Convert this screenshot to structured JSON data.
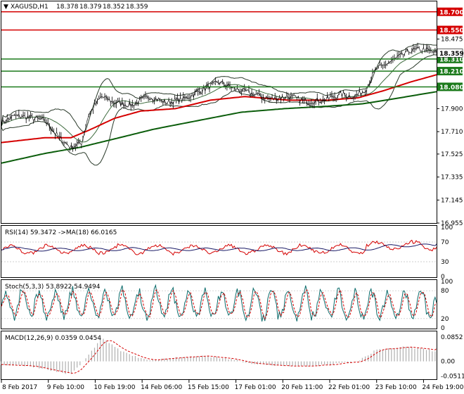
{
  "chart_data": {
    "type": "line",
    "symbol": "XAGUSD,H1",
    "ohlc": {
      "open": "18.378",
      "high": "18.379",
      "low": "18.352",
      "close": "18.359"
    },
    "current_price": 18.359,
    "current_price_label": "18.359",
    "price_axis": {
      "ylim": [
        16.955,
        18.78
      ],
      "ticks": [
        "18.700",
        "18.475",
        "18.280",
        "18.085",
        "17.900",
        "17.710",
        "17.525",
        "17.335",
        "17.145",
        "16.955"
      ]
    },
    "levels": [
      {
        "value": 18.7,
        "label": "18.700",
        "color": "#d50000"
      },
      {
        "value": 18.55,
        "label": "18.550",
        "color": "#d50000"
      },
      {
        "value": 18.31,
        "label": "18.310",
        "color": "#1b7a1b"
      },
      {
        "value": 18.21,
        "label": "18.210",
        "color": "#1b7a1b"
      },
      {
        "value": 18.08,
        "label": "18.080",
        "color": "#1b7a1b"
      }
    ],
    "x_labels": [
      "8 Feb 2017",
      "9 Feb 10:00",
      "10 Feb 19:00",
      "14 Feb 06:00",
      "15 Feb 15:00",
      "17 Feb 01:00",
      "20 Feb 11:00",
      "22 Feb 01:00",
      "23 Feb 10:00",
      "24 Feb 19:00"
    ],
    "price_keypoints": [
      [
        0,
        17.78
      ],
      [
        0.03,
        17.84
      ],
      [
        0.06,
        17.83
      ],
      [
        0.1,
        17.8
      ],
      [
        0.13,
        17.67
      ],
      [
        0.16,
        17.58
      ],
      [
        0.185,
        17.62
      ],
      [
        0.2,
        17.85
      ],
      [
        0.23,
        18.0
      ],
      [
        0.26,
        17.95
      ],
      [
        0.3,
        17.93
      ],
      [
        0.34,
        18.0
      ],
      [
        0.38,
        17.95
      ],
      [
        0.42,
        17.98
      ],
      [
        0.46,
        18.05
      ],
      [
        0.5,
        18.12
      ],
      [
        0.54,
        18.06
      ],
      [
        0.58,
        18.02
      ],
      [
        0.62,
        17.98
      ],
      [
        0.66,
        18.0
      ],
      [
        0.7,
        17.96
      ],
      [
        0.74,
        17.97
      ],
      [
        0.78,
        18.02
      ],
      [
        0.81,
        18.0
      ],
      [
        0.835,
        18.05
      ],
      [
        0.86,
        18.22
      ],
      [
        0.9,
        18.3
      ],
      [
        0.94,
        18.38
      ],
      [
        0.97,
        18.39
      ],
      [
        1.0,
        18.36
      ]
    ],
    "ma_fast_keypoints": [
      [
        0,
        17.62
      ],
      [
        0.1,
        17.66
      ],
      [
        0.16,
        17.66
      ],
      [
        0.2,
        17.72
      ],
      [
        0.26,
        17.82
      ],
      [
        0.32,
        17.88
      ],
      [
        0.4,
        17.9
      ],
      [
        0.48,
        17.97
      ],
      [
        0.56,
        18.0
      ],
      [
        0.66,
        17.97
      ],
      [
        0.75,
        17.97
      ],
      [
        0.82,
        17.99
      ],
      [
        0.88,
        18.05
      ],
      [
        0.94,
        18.12
      ],
      [
        1.0,
        18.18
      ]
    ],
    "ma_slow_keypoints": [
      [
        0,
        17.45
      ],
      [
        0.1,
        17.53
      ],
      [
        0.18,
        17.58
      ],
      [
        0.26,
        17.65
      ],
      [
        0.35,
        17.73
      ],
      [
        0.45,
        17.8
      ],
      [
        0.55,
        17.87
      ],
      [
        0.65,
        17.9
      ],
      [
        0.75,
        17.92
      ],
      [
        0.83,
        17.94
      ],
      [
        0.9,
        17.98
      ],
      [
        1.0,
        18.04
      ]
    ],
    "rsi": {
      "label": "RSI(14) 59.3472 ->MA(18) 66.0165",
      "rsi_value": 59.3472,
      "ma_value": 66.0165,
      "ylim": [
        0,
        100
      ],
      "ticks": [
        "100",
        "70",
        "30",
        "0"
      ]
    },
    "stoch": {
      "label": "Stoch(5,3,3) 53.8922 54.9494",
      "k": 53.8922,
      "d": 54.9494,
      "ylim": [
        0,
        100
      ],
      "ticks": [
        "100",
        "80",
        "20",
        "0"
      ]
    },
    "macd": {
      "label": "MACD(12,26,9) 0.0359 0.0454",
      "main": 0.0359,
      "signal": 0.0454,
      "ylim": [
        -0.06,
        0.1
      ],
      "ticks": [
        "0.0852",
        "0.00",
        "-0.0511"
      ]
    },
    "colors": {
      "price": "#000000",
      "ma_fast": "#d50000",
      "ma_slow": "#0b5d0b",
      "bands": "#2a3a2a",
      "rsi": "#d50000",
      "rsi_ma": "#1a1a66",
      "stoch_main": "#0b6b6b",
      "stoch_signal": "#d50000",
      "macd_hist": "#b0b0b0",
      "macd_signal": "#d50000"
    }
  }
}
